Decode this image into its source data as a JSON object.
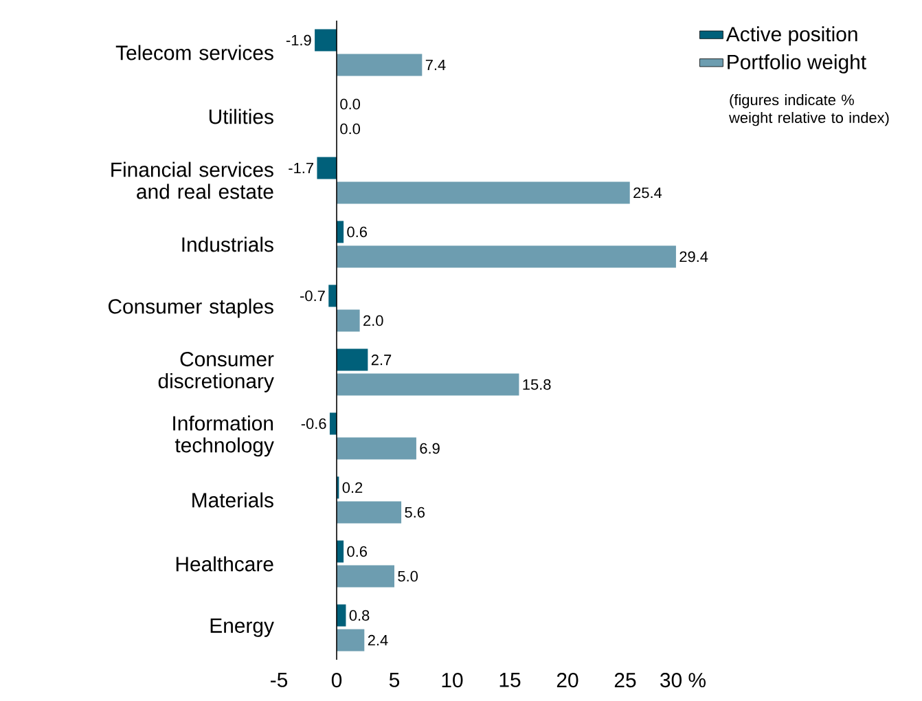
{
  "chart_data": {
    "type": "bar",
    "orientation": "horizontal",
    "categories": [
      "Telecom services",
      "Utilities",
      "Financial services and real estate",
      "Industrials",
      "Consumer staples",
      "Consumer discretionary",
      "Information technology",
      "Materials",
      "Healthcare",
      "Energy"
    ],
    "series": [
      {
        "name": "Active position",
        "color": "#00607a",
        "values": [
          -1.9,
          0.0,
          -1.7,
          0.6,
          -0.7,
          2.7,
          -0.6,
          0.2,
          0.6,
          0.8
        ],
        "value_labels": [
          "-1.9",
          "0.0",
          "-1.7",
          "0.6",
          "-0.7",
          "2.7",
          "-0.6",
          "0.2",
          "0.6",
          "0.8"
        ]
      },
      {
        "name": "Portfolio weight",
        "color": "#6d9db0",
        "values": [
          7.4,
          0.0,
          25.4,
          29.4,
          2.0,
          15.8,
          6.9,
          5.6,
          5.0,
          2.4
        ],
        "value_labels": [
          "7.4",
          "0.0",
          "25.4",
          "29.4",
          "2.0",
          "15.8",
          "6.9",
          "5.6",
          "5.0",
          "2.4"
        ]
      }
    ],
    "xlim": [
      -5,
      30
    ],
    "xticks": [
      -5,
      0,
      5,
      10,
      15,
      20,
      25,
      {
        "value": 30,
        "label": "30 %"
      }
    ],
    "legend": "top right",
    "annotations": [
      "(figures indicate % weight relative to index)"
    ]
  }
}
